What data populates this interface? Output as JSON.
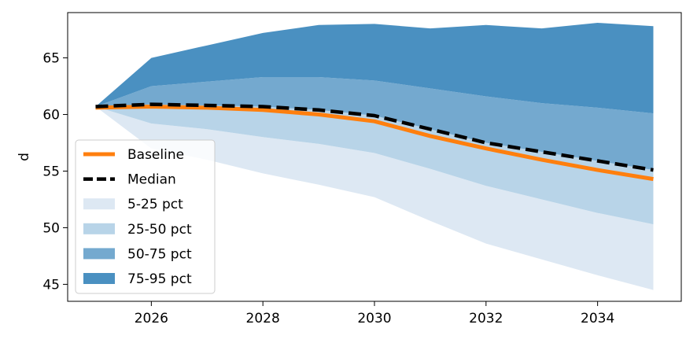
{
  "chart_data": {
    "type": "area",
    "title": "",
    "xlabel": "",
    "ylabel": "d",
    "xlim": [
      2024.5,
      2035.5
    ],
    "ylim": [
      43.5,
      69.0
    ],
    "xticks": [
      2026,
      2028,
      2030,
      2032,
      2034
    ],
    "yticks": [
      45,
      50,
      55,
      60,
      65
    ],
    "grid": false,
    "legend_position": "lower-left",
    "x": [
      2025,
      2026,
      2027,
      2028,
      2029,
      2030,
      2031,
      2032,
      2033,
      2034,
      2035
    ],
    "percentiles": {
      "p5": [
        60.7,
        57.0,
        56.0,
        54.8,
        53.8,
        52.7,
        50.6,
        48.6,
        47.2,
        45.8,
        44.5
      ],
      "p25": [
        60.7,
        59.2,
        58.7,
        58.0,
        57.4,
        56.6,
        55.2,
        53.7,
        52.5,
        51.3,
        50.3
      ],
      "p50": [
        60.7,
        60.9,
        60.8,
        60.7,
        60.4,
        59.9,
        58.7,
        57.5,
        56.7,
        55.9,
        55.1
      ],
      "p75": [
        60.7,
        62.5,
        62.9,
        63.3,
        63.3,
        63.0,
        62.3,
        61.6,
        61.0,
        60.6,
        60.1
      ],
      "p95": [
        60.7,
        65.0,
        66.1,
        67.2,
        67.9,
        68.0,
        67.6,
        67.9,
        67.6,
        68.1,
        67.8
      ]
    },
    "series": [
      {
        "name": "Baseline",
        "values": [
          60.6,
          60.7,
          60.6,
          60.4,
          60.0,
          59.4,
          58.1,
          57.0,
          56.0,
          55.1,
          54.3
        ],
        "color": "#ff7f0e",
        "style": "solid"
      },
      {
        "name": "Median",
        "values": [
          60.7,
          60.9,
          60.8,
          60.7,
          60.4,
          59.9,
          58.7,
          57.5,
          56.7,
          55.9,
          55.1
        ],
        "color": "#000000",
        "style": "dashed"
      }
    ],
    "bands": [
      {
        "name": "5-25 pct",
        "from": "p5",
        "to": "p25",
        "color": "#dde8f3"
      },
      {
        "name": "25-50 pct",
        "from": "p25",
        "to": "p50",
        "color": "#b8d4e8"
      },
      {
        "name": "50-75 pct",
        "from": "p50",
        "to": "p75",
        "color": "#74a9cf"
      },
      {
        "name": "75-95 pct",
        "from": "p75",
        "to": "p95",
        "color": "#4a90c1"
      }
    ],
    "legend": [
      "Baseline",
      "Median",
      "5-25 pct",
      "25-50 pct",
      "50-75 pct",
      "75-95 pct"
    ]
  }
}
